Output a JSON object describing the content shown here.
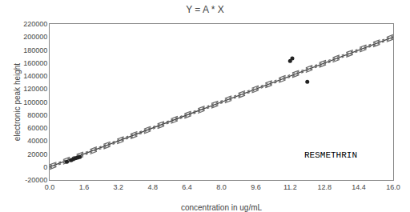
{
  "chart_data": {
    "type": "scatter",
    "title": "Y = A * X",
    "xlabel": "concentration in ug/mL",
    "ylabel": "electronic peak height",
    "xlim": [
      0.0,
      16.0
    ],
    "ylim": [
      -20000,
      220000
    ],
    "xticks": [
      {
        "value": 0.0,
        "label": "0.0"
      },
      1.6,
      3.2,
      4.8,
      6.4,
      {
        "value": 8.0,
        "label": "8.0"
      },
      9.6,
      11.2,
      12.8,
      14.4,
      {
        "value": 16.0,
        "label": "16.0"
      }
    ],
    "yticks": [
      -20000,
      0,
      20000,
      40000,
      60000,
      80000,
      100000,
      120000,
      140000,
      160000,
      180000,
      200000,
      220000
    ],
    "grid": false,
    "series": [
      {
        "type": "line",
        "line_style": "dashed",
        "color": "#666666",
        "x": [
          0.0,
          16.0
        ],
        "values": [
          3500,
          203500
        ]
      },
      {
        "type": "line",
        "line_style": "dashed",
        "color": "#666666",
        "x": [
          0.0,
          16.0
        ],
        "values": [
          -3500,
          196500
        ]
      },
      {
        "type": "line",
        "line_style": "dotted",
        "color": "#666666",
        "x": [
          0.0,
          16.0
        ],
        "values": [
          1750,
          201750
        ]
      },
      {
        "type": "line",
        "line_style": "dotted",
        "color": "#666666",
        "x": [
          0.0,
          16.0
        ],
        "values": [
          -1750,
          198250
        ]
      },
      {
        "type": "line",
        "line_style": "solid",
        "color": "#444444",
        "x": [
          0.0,
          16.0
        ],
        "values": [
          0,
          200000
        ]
      },
      {
        "type": "scatter",
        "marker": "circle",
        "color": "#222222",
        "x": [
          0.8,
          1.0,
          1.1,
          1.2,
          1.3,
          1.4,
          11.2,
          11.3,
          12.0
        ],
        "values": [
          8000,
          10500,
          12000,
          13500,
          14500,
          15500,
          163000,
          167000,
          131000
        ]
      }
    ],
    "annotations": [
      {
        "text": "RESMETHRIN",
        "x": 11.8,
        "y": 8000
      }
    ]
  }
}
